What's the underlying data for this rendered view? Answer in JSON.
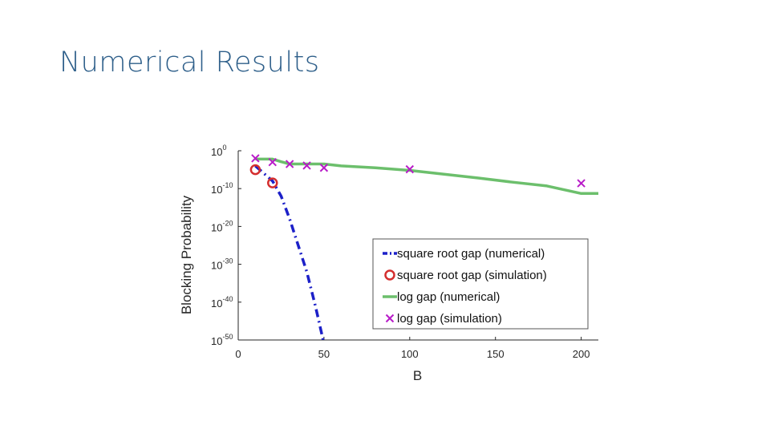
{
  "slide": {
    "title": "Numerical Results"
  },
  "colors": {
    "square_root_numerical": "#1c20c8",
    "square_root_simulation": "#d42e2e",
    "log_numerical": "#6cbf6c",
    "log_simulation": "#b81cc8",
    "axis": "#262626",
    "legend_border": "#555555"
  },
  "chart_data": {
    "type": "line",
    "xlabel": "B",
    "ylabel": "Blocking Probability",
    "xlim": [
      0,
      210
    ],
    "ylim_log10": [
      -50,
      0
    ],
    "yscale": "log",
    "grid": false,
    "legend_position": "bottom-right",
    "x_ticks": [
      {
        "value": 0,
        "label": "0"
      },
      {
        "value": 50,
        "label": "50"
      },
      {
        "value": 100,
        "label": "100"
      },
      {
        "value": 150,
        "label": "150"
      },
      {
        "value": 200,
        "label": "200"
      }
    ],
    "y_ticks": [
      {
        "value": 0,
        "base": "10",
        "exp": "0"
      },
      {
        "value": -10,
        "base": "10",
        "exp": "-10"
      },
      {
        "value": -20,
        "base": "10",
        "exp": "-20"
      },
      {
        "value": -30,
        "base": "10",
        "exp": "-30"
      },
      {
        "value": -40,
        "base": "10",
        "exp": "-40"
      },
      {
        "value": -50,
        "base": "10",
        "exp": "-50"
      }
    ],
    "series": [
      {
        "name": "square root gap (numerical)",
        "style": "dashdot-line",
        "color": "#1c20c8",
        "x": [
          10,
          15,
          20,
          25,
          30,
          35,
          40,
          45,
          50
        ],
        "log10_y": [
          -4,
          -6,
          -8,
          -12,
          -18,
          -25,
          -32,
          -41,
          -51
        ]
      },
      {
        "name": "square root gap (simulation)",
        "style": "circle-marker",
        "color": "#d42e2e",
        "x": [
          10,
          20
        ],
        "log10_y": [
          -5,
          -8.5
        ]
      },
      {
        "name": "log gap (numerical)",
        "style": "solid-line",
        "color": "#6cbf6c",
        "x": [
          10,
          20,
          25,
          30,
          40,
          50,
          60,
          80,
          100,
          120,
          140,
          160,
          180,
          200,
          210
        ],
        "log10_y": [
          -2.2,
          -2.2,
          -2.9,
          -3.5,
          -3.5,
          -3.5,
          -4.0,
          -4.5,
          -5.2,
          -6.2,
          -7.2,
          -8.3,
          -9.3,
          -11.3,
          -11.3
        ]
      },
      {
        "name": "log gap (simulation)",
        "style": "x-marker",
        "color": "#b81cc8",
        "x": [
          10,
          20,
          30,
          40,
          50,
          100,
          200
        ],
        "log10_y": [
          -2.0,
          -3.0,
          -3.5,
          -3.9,
          -4.5,
          -4.9,
          -8.6
        ]
      }
    ]
  }
}
